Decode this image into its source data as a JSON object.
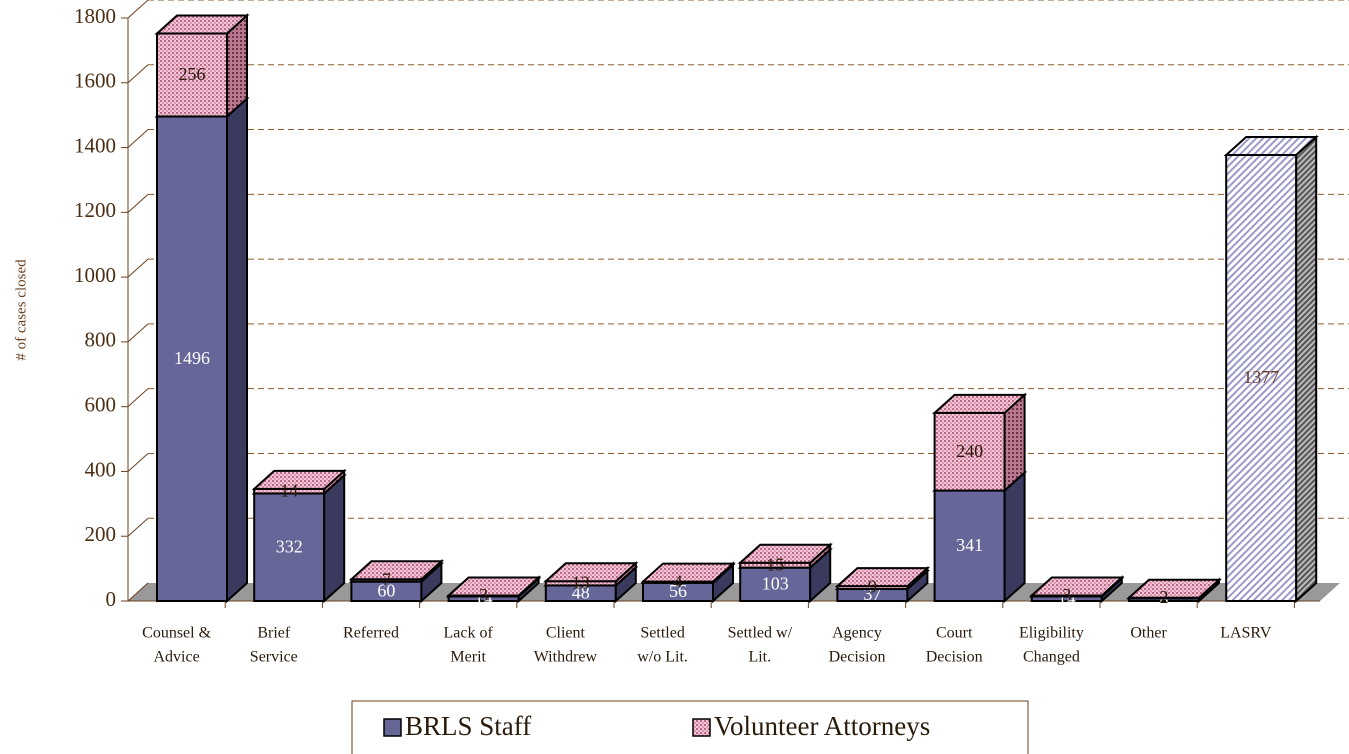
{
  "chart_data": {
    "type": "bar3d-stacked",
    "ylabel": "# of cases closed",
    "categories": [
      [
        "Counsel &",
        "Advice"
      ],
      [
        "Brief",
        "Service"
      ],
      [
        "Referred"
      ],
      [
        "Lack of",
        "Merit"
      ],
      [
        "Client",
        "Withdrew"
      ],
      [
        "Settled",
        "w/o Lit."
      ],
      [
        "Settled w/",
        "Lit."
      ],
      [
        "Agency",
        "Decision"
      ],
      [
        "Court",
        "Decision"
      ],
      [
        "Eligibility",
        "Changed"
      ],
      [
        "Other"
      ],
      [
        "LASRV"
      ]
    ],
    "series": [
      {
        "name": "BRLS Staff",
        "color": "#666699",
        "pattern": "solid",
        "values": [
          1496,
          332,
          60,
          14,
          48,
          56,
          103,
          37,
          341,
          14,
          8,
          null
        ]
      },
      {
        "name": "Volunteer Attorneys",
        "color": "#e6a8c0",
        "pattern": "checker",
        "values": [
          256,
          14,
          7,
          3,
          13,
          4,
          15,
          9,
          240,
          3,
          2,
          null
        ]
      },
      {
        "color": "#8f8fc0",
        "pattern": "hatch",
        "values": [
          null,
          null,
          null,
          null,
          null,
          null,
          null,
          null,
          null,
          null,
          null,
          1377
        ]
      }
    ],
    "ylim": [
      0,
      1800
    ],
    "yticks": [
      0,
      200,
      400,
      600,
      800,
      1000,
      1200,
      1400,
      1600,
      1800
    ],
    "grid": true
  }
}
